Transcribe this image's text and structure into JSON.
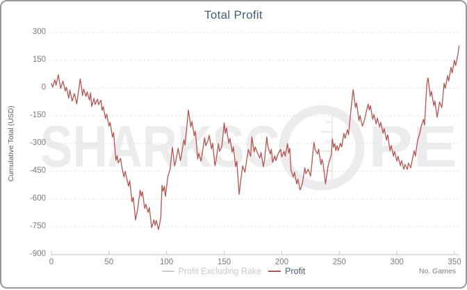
{
  "chart": {
    "title": "Total Profit",
    "y_axis_title": "Cumulative Total (USD)",
    "x_axis_title": "No. Games",
    "watermark": {
      "text": "SHARKSCOPE",
      "left": "SHARKSC",
      "right": "PE"
    },
    "legend": [
      {
        "label": "Profit Excluding Rake",
        "color": "#cbcbcb",
        "text_color": "#cbcbcb"
      },
      {
        "label": "Profit",
        "color": "#b5534f",
        "text_color": "#456179"
      }
    ],
    "colors": {
      "title": "#456179",
      "line": "#b5534f",
      "grid": "#dcdcdc",
      "axis": "#bfbfbf",
      "tick_text": "#7a7a7a",
      "watermark": "#ececec"
    }
  },
  "chart_data": {
    "type": "line",
    "title": "Total Profit",
    "xlabel": "No. Games",
    "ylabel": "Cumulative Total (USD)",
    "xlim": [
      0,
      357
    ],
    "ylim": [
      -900,
      300
    ],
    "x_ticks": [
      0,
      50,
      100,
      150,
      200,
      250,
      300,
      350
    ],
    "y_ticks": [
      300,
      150,
      0,
      -150,
      -300,
      -450,
      -600,
      -750,
      -900
    ],
    "grid": "horizontal-dotted",
    "legend_position": "bottom-center",
    "series": [
      {
        "name": "Profit Excluding Rake",
        "color": "#cbcbcb",
        "visible": false,
        "points": []
      },
      {
        "name": "Profit",
        "color": "#b5534f",
        "visible": true,
        "points": [
          [
            0,
            25
          ],
          [
            1,
            5
          ],
          [
            3,
            45
          ],
          [
            4,
            15
          ],
          [
            6,
            72
          ],
          [
            8,
            -2
          ],
          [
            10,
            38
          ],
          [
            12,
            -15
          ],
          [
            13,
            5
          ],
          [
            15,
            -55
          ],
          [
            16,
            -10
          ],
          [
            18,
            -70
          ],
          [
            20,
            -30
          ],
          [
            22,
            -85
          ],
          [
            25,
            50
          ],
          [
            26,
            10
          ],
          [
            27,
            -40
          ],
          [
            28,
            -5
          ],
          [
            30,
            -45
          ],
          [
            31,
            -20
          ],
          [
            33,
            -65
          ],
          [
            34,
            -25
          ],
          [
            35,
            -100
          ],
          [
            37,
            -55
          ],
          [
            38,
            -88
          ],
          [
            40,
            -60
          ],
          [
            41,
            -90
          ],
          [
            43,
            -65
          ],
          [
            44,
            -120
          ],
          [
            45,
            -100
          ],
          [
            47,
            -165
          ],
          [
            48,
            -140
          ],
          [
            50,
            -205
          ],
          [
            51,
            -185
          ],
          [
            53,
            -265
          ],
          [
            54,
            -240
          ],
          [
            56,
            -390
          ],
          [
            57,
            -365
          ],
          [
            58,
            -405
          ],
          [
            60,
            -380
          ],
          [
            62,
            -455
          ],
          [
            63,
            -480
          ],
          [
            64,
            -450
          ],
          [
            66,
            -505
          ],
          [
            67,
            -530
          ],
          [
            68,
            -500
          ],
          [
            70,
            -615
          ],
          [
            71,
            -590
          ],
          [
            73,
            -712
          ],
          [
            75,
            -650
          ],
          [
            77,
            -552
          ],
          [
            78,
            -585
          ],
          [
            79,
            -560
          ],
          [
            81,
            -650
          ],
          [
            82,
            -628
          ],
          [
            84,
            -672
          ],
          [
            85,
            -645
          ],
          [
            87,
            -755
          ],
          [
            89,
            -712
          ],
          [
            90,
            -742
          ],
          [
            91,
            -715
          ],
          [
            93,
            -765
          ],
          [
            95,
            -700
          ],
          [
            96,
            -525
          ],
          [
            97,
            -558
          ],
          [
            98,
            -530
          ],
          [
            99,
            -585
          ],
          [
            101,
            -480
          ],
          [
            103,
            -440
          ],
          [
            105,
            -319
          ],
          [
            107,
            -420
          ],
          [
            108,
            -395
          ],
          [
            110,
            -325
          ],
          [
            112,
            -392
          ],
          [
            113,
            -355
          ],
          [
            115,
            -280
          ],
          [
            116,
            -308
          ],
          [
            119,
            -118
          ],
          [
            121,
            -210
          ],
          [
            122,
            -180
          ],
          [
            124,
            -258
          ],
          [
            125,
            -232
          ],
          [
            127,
            -383
          ],
          [
            128,
            -352
          ],
          [
            130,
            -395
          ],
          [
            133,
            -268
          ],
          [
            134,
            -312
          ],
          [
            136,
            -282
          ],
          [
            137,
            -255
          ],
          [
            139,
            -328
          ],
          [
            140,
            -298
          ],
          [
            142,
            -420
          ],
          [
            143,
            -388
          ],
          [
            145,
            -300
          ],
          [
            146,
            -342
          ],
          [
            148,
            -315
          ],
          [
            150,
            -188
          ],
          [
            151,
            -245
          ],
          [
            152,
            -215
          ],
          [
            154,
            -298
          ],
          [
            155,
            -272
          ],
          [
            157,
            -348
          ],
          [
            158,
            -318
          ],
          [
            160,
            -425
          ],
          [
            161,
            -395
          ],
          [
            163,
            -574
          ],
          [
            165,
            -470
          ],
          [
            166,
            -420
          ],
          [
            168,
            -455
          ],
          [
            170,
            -372
          ],
          [
            171,
            -332
          ],
          [
            173,
            -368
          ],
          [
            174,
            -263
          ],
          [
            176,
            -345
          ],
          [
            177,
            -318
          ],
          [
            179,
            -352
          ],
          [
            181,
            -378
          ],
          [
            182,
            -348
          ],
          [
            184,
            -424
          ],
          [
            185,
            -392
          ],
          [
            187,
            -263
          ],
          [
            188,
            -315
          ],
          [
            190,
            -356
          ],
          [
            191,
            -330
          ],
          [
            192,
            -401
          ],
          [
            194,
            -368
          ],
          [
            195,
            -392
          ],
          [
            197,
            -352
          ],
          [
            199,
            -331
          ],
          [
            200,
            -372
          ],
          [
            202,
            -342
          ],
          [
            203,
            -368
          ],
          [
            205,
            -300
          ],
          [
            206,
            -352
          ],
          [
            207,
            -325
          ],
          [
            208,
            -443
          ],
          [
            210,
            -480
          ],
          [
            211,
            -455
          ],
          [
            213,
            -518
          ],
          [
            214,
            -492
          ],
          [
            216,
            -551
          ],
          [
            218,
            -512
          ],
          [
            220,
            -431
          ],
          [
            221,
            -462
          ],
          [
            223,
            -438
          ],
          [
            225,
            -476
          ],
          [
            228,
            -293
          ],
          [
            229,
            -332
          ],
          [
            231,
            -356
          ],
          [
            232,
            -330
          ],
          [
            234,
            -413
          ],
          [
            235,
            -385
          ],
          [
            236,
            -412
          ],
          [
            238,
            -518
          ],
          [
            240,
            -430
          ],
          [
            241,
            -401
          ],
          [
            243,
            -362
          ],
          [
            244,
            -274
          ],
          [
            245,
            -320
          ],
          [
            246,
            -300
          ],
          [
            247,
            -338
          ],
          [
            248,
            -311
          ],
          [
            249,
            -338
          ],
          [
            251,
            -298
          ],
          [
            252,
            -318
          ],
          [
            254,
            -244
          ],
          [
            255,
            -272
          ],
          [
            257,
            -225
          ],
          [
            258,
            -252
          ],
          [
            260,
            -120
          ],
          [
            262,
            -8
          ],
          [
            263,
            -55
          ],
          [
            264,
            -105
          ],
          [
            265,
            -80
          ],
          [
            267,
            -176
          ],
          [
            268,
            -148
          ],
          [
            270,
            -206
          ],
          [
            272,
            -170
          ],
          [
            273,
            -140
          ],
          [
            275,
            -86
          ],
          [
            276,
            -118
          ],
          [
            277,
            -95
          ],
          [
            279,
            -169
          ],
          [
            280,
            -142
          ],
          [
            282,
            -194
          ],
          [
            283,
            -162
          ],
          [
            285,
            -210
          ],
          [
            286,
            -185
          ],
          [
            288,
            -244
          ],
          [
            289,
            -218
          ],
          [
            291,
            -281
          ],
          [
            292,
            -252
          ],
          [
            294,
            -338
          ],
          [
            295,
            -310
          ],
          [
            297,
            -368
          ],
          [
            298,
            -342
          ],
          [
            300,
            -394
          ],
          [
            301,
            -368
          ],
          [
            303,
            -419
          ],
          [
            304,
            -392
          ],
          [
            306,
            -439
          ],
          [
            307,
            -412
          ],
          [
            309,
            -439
          ],
          [
            310,
            -405
          ],
          [
            312,
            -431
          ],
          [
            313,
            -398
          ],
          [
            315,
            -338
          ],
          [
            316,
            -368
          ],
          [
            318,
            -281
          ],
          [
            320,
            -240
          ],
          [
            321,
            -210
          ],
          [
            323,
            -169
          ],
          [
            324,
            -200
          ],
          [
            326,
            20
          ],
          [
            327,
            56
          ],
          [
            329,
            -45
          ],
          [
            330,
            -18
          ],
          [
            332,
            -95
          ],
          [
            333,
            -70
          ],
          [
            335,
            -158
          ],
          [
            337,
            -75
          ],
          [
            339,
            -105
          ],
          [
            341,
            26
          ],
          [
            342,
            -2
          ],
          [
            344,
            68
          ],
          [
            345,
            38
          ],
          [
            347,
            113
          ],
          [
            348,
            82
          ],
          [
            350,
            150
          ],
          [
            351,
            122
          ],
          [
            353,
            185
          ],
          [
            354,
            228
          ]
        ]
      }
    ]
  }
}
